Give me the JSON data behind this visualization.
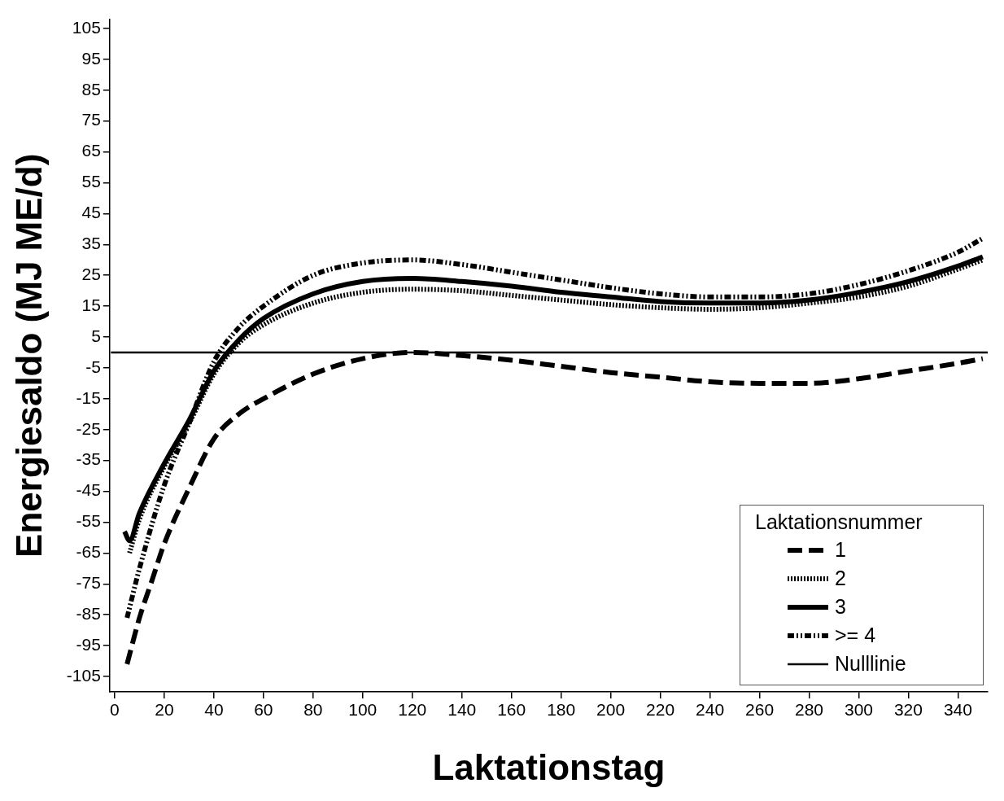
{
  "chart_data": {
    "type": "line",
    "xlabel": "Laktationstag",
    "ylabel": "Energiesaldo (MJ ME/d)",
    "legend_title": "Laktationsnummer",
    "legend": "bottom right",
    "grid": false,
    "marker": "none",
    "xlim": [
      -2,
      352
    ],
    "xticks": [
      0,
      20,
      40,
      60,
      80,
      100,
      120,
      140,
      160,
      180,
      200,
      220,
      240,
      260,
      280,
      300,
      320,
      340
    ],
    "ylim": [
      -110,
      108
    ],
    "yticks": [
      -105,
      -95,
      -85,
      -75,
      -65,
      -55,
      -45,
      -35,
      -25,
      -15,
      -5,
      5,
      15,
      25,
      35,
      45,
      55,
      65,
      75,
      85,
      95,
      105
    ],
    "series": [
      {
        "name": "1",
        "color": "#000000",
        "line_style": "dashed",
        "x": [
          5,
          10,
          15,
          20,
          30,
          40,
          50,
          60,
          80,
          100,
          120,
          140,
          160,
          180,
          200,
          220,
          240,
          260,
          280,
          300,
          320,
          340,
          350
        ],
        "values": [
          -101,
          -86,
          -74,
          -62,
          -44,
          -28,
          -20,
          -15,
          -7,
          -2,
          0,
          -1,
          -2.5,
          -4.5,
          -6.5,
          -8,
          -9.5,
          -10,
          -10,
          -8.5,
          -6,
          -3.5,
          -2
        ]
      },
      {
        "name": "2",
        "color": "#000000",
        "line_style": "dotted",
        "x": [
          6,
          10,
          20,
          30,
          40,
          50,
          60,
          80,
          100,
          120,
          140,
          160,
          180,
          200,
          220,
          240,
          260,
          280,
          300,
          320,
          340,
          350
        ],
        "values": [
          -65,
          -54,
          -37,
          -23,
          -7,
          3,
          9,
          16,
          19.5,
          20.5,
          20,
          18.5,
          17,
          15.5,
          14.5,
          14,
          14.5,
          16,
          18,
          21.5,
          27,
          30
        ]
      },
      {
        "name": "3",
        "color": "#000000",
        "line_style": "solid",
        "x": [
          4,
          6,
          10,
          20,
          30,
          40,
          50,
          60,
          80,
          100,
          120,
          140,
          160,
          180,
          200,
          220,
          240,
          260,
          280,
          300,
          320,
          340,
          350
        ],
        "values": [
          -58,
          -61,
          -52,
          -36,
          -22,
          -6,
          4,
          11,
          19,
          23,
          24,
          23,
          21.5,
          19.5,
          18,
          16.5,
          16,
          16,
          17,
          19.5,
          23,
          28,
          31
        ]
      },
      {
        "name": ">= 4",
        "color": "#000000",
        "line_style": "dashdot",
        "x": [
          5,
          10,
          20,
          30,
          40,
          50,
          60,
          80,
          100,
          120,
          140,
          160,
          180,
          200,
          220,
          240,
          260,
          280,
          300,
          320,
          340,
          350
        ],
        "values": [
          -86,
          -70,
          -43,
          -23,
          -3,
          8,
          15,
          25,
          29,
          30,
          28.5,
          26,
          23.5,
          21,
          19,
          18,
          18,
          19,
          22,
          26.5,
          32.5,
          37
        ]
      }
    ],
    "ref_lines": [
      {
        "axis": "y",
        "value": 0,
        "label": "Nulllinie",
        "color": "#000000",
        "line_style": "solid"
      }
    ]
  }
}
